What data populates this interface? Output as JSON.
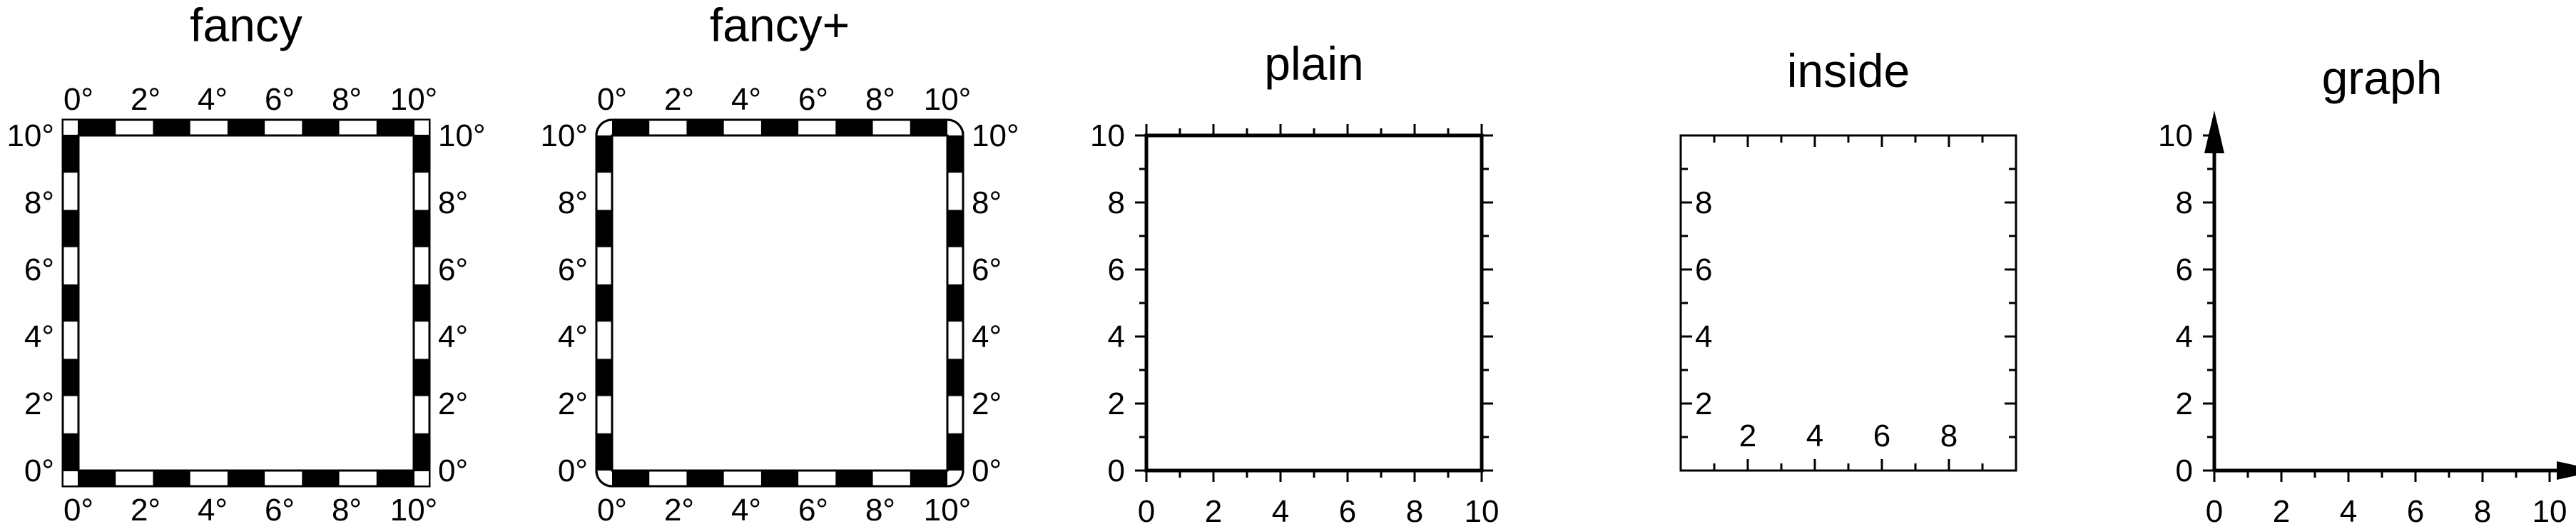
{
  "panels": [
    {
      "id": "fancy",
      "title": "fancy",
      "frame": "fancy",
      "rounded": false,
      "labels": [
        "top",
        "bottom",
        "left",
        "right"
      ],
      "degree": true,
      "x_range": [
        0,
        10
      ],
      "y_range": [
        0,
        10
      ],
      "annot_ticks": [
        0,
        2,
        4,
        6,
        8,
        10
      ],
      "minor_ticks": []
    },
    {
      "id": "fancy-plus",
      "title": "fancy+",
      "frame": "fancy",
      "rounded": true,
      "labels": [
        "top",
        "bottom",
        "left",
        "right"
      ],
      "degree": true,
      "x_range": [
        0,
        10
      ],
      "y_range": [
        0,
        10
      ],
      "annot_ticks": [
        0,
        2,
        4,
        6,
        8,
        10
      ],
      "minor_ticks": []
    },
    {
      "id": "plain",
      "title": "plain",
      "frame": "plain",
      "rounded": false,
      "labels": [
        "bottom",
        "left"
      ],
      "degree": false,
      "x_range": [
        0,
        10
      ],
      "y_range": [
        0,
        10
      ],
      "annot_ticks": [
        0,
        2,
        4,
        6,
        8,
        10
      ],
      "minor_ticks": [
        1,
        3,
        5,
        7,
        9
      ]
    },
    {
      "id": "inside",
      "title": "inside",
      "frame": "inside",
      "rounded": false,
      "labels": [
        "bottom",
        "left"
      ],
      "degree": false,
      "x_range": [
        0,
        10
      ],
      "y_range": [
        0,
        10
      ],
      "annot_ticks": [
        2,
        4,
        6,
        8
      ],
      "minor_ticks": [
        1,
        3,
        5,
        7,
        9
      ]
    },
    {
      "id": "graph",
      "title": "graph",
      "frame": "graph",
      "rounded": false,
      "labels": [
        "bottom",
        "left"
      ],
      "degree": false,
      "x_range": [
        0,
        10
      ],
      "y_range": [
        0,
        10
      ],
      "annot_ticks": [
        0,
        2,
        4,
        6,
        8,
        10
      ],
      "minor_ticks": [
        1,
        3,
        5,
        7,
        9
      ]
    }
  ]
}
